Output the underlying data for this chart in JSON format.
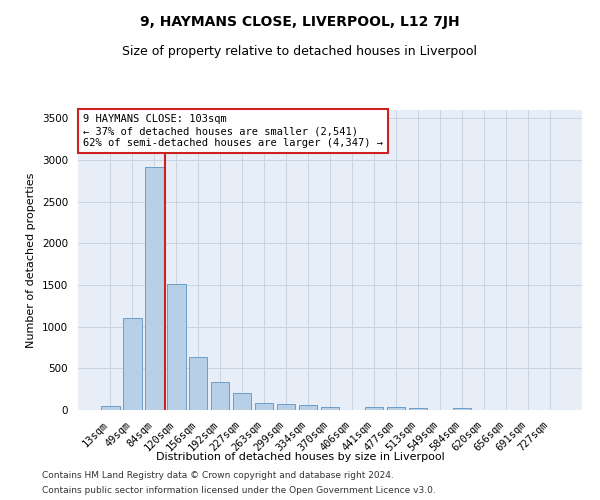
{
  "title1": "9, HAYMANS CLOSE, LIVERPOOL, L12 7JH",
  "title2": "Size of property relative to detached houses in Liverpool",
  "xlabel": "Distribution of detached houses by size in Liverpool",
  "ylabel": "Number of detached properties",
  "categories": [
    "13sqm",
    "49sqm",
    "84sqm",
    "120sqm",
    "156sqm",
    "192sqm",
    "227sqm",
    "263sqm",
    "299sqm",
    "334sqm",
    "370sqm",
    "406sqm",
    "441sqm",
    "477sqm",
    "513sqm",
    "549sqm",
    "584sqm",
    "620sqm",
    "656sqm",
    "691sqm",
    "727sqm"
  ],
  "values": [
    50,
    1100,
    2920,
    1510,
    640,
    340,
    200,
    90,
    75,
    55,
    40,
    0,
    40,
    35,
    30,
    0,
    25,
    0,
    0,
    0,
    0
  ],
  "bar_color": "#b8cfe8",
  "bar_edge_color": "#6a9ec8",
  "grid_color": "#c8d4e4",
  "bg_color": "#e8eef8",
  "vline_color": "#cc2222",
  "vline_pos": 2.5,
  "annotation_text": "9 HAYMANS CLOSE: 103sqm\n← 37% of detached houses are smaller (2,541)\n62% of semi-detached houses are larger (4,347) →",
  "annotation_box_color": "#cc2222",
  "ylim": [
    0,
    3600
  ],
  "yticks": [
    0,
    500,
    1000,
    1500,
    2000,
    2500,
    3000,
    3500
  ],
  "footer1": "Contains HM Land Registry data © Crown copyright and database right 2024.",
  "footer2": "Contains public sector information licensed under the Open Government Licence v3.0.",
  "title1_fontsize": 10,
  "title2_fontsize": 9,
  "axis_label_fontsize": 8,
  "tick_fontsize": 7.5,
  "annotation_fontsize": 7.5,
  "footer_fontsize": 6.5
}
